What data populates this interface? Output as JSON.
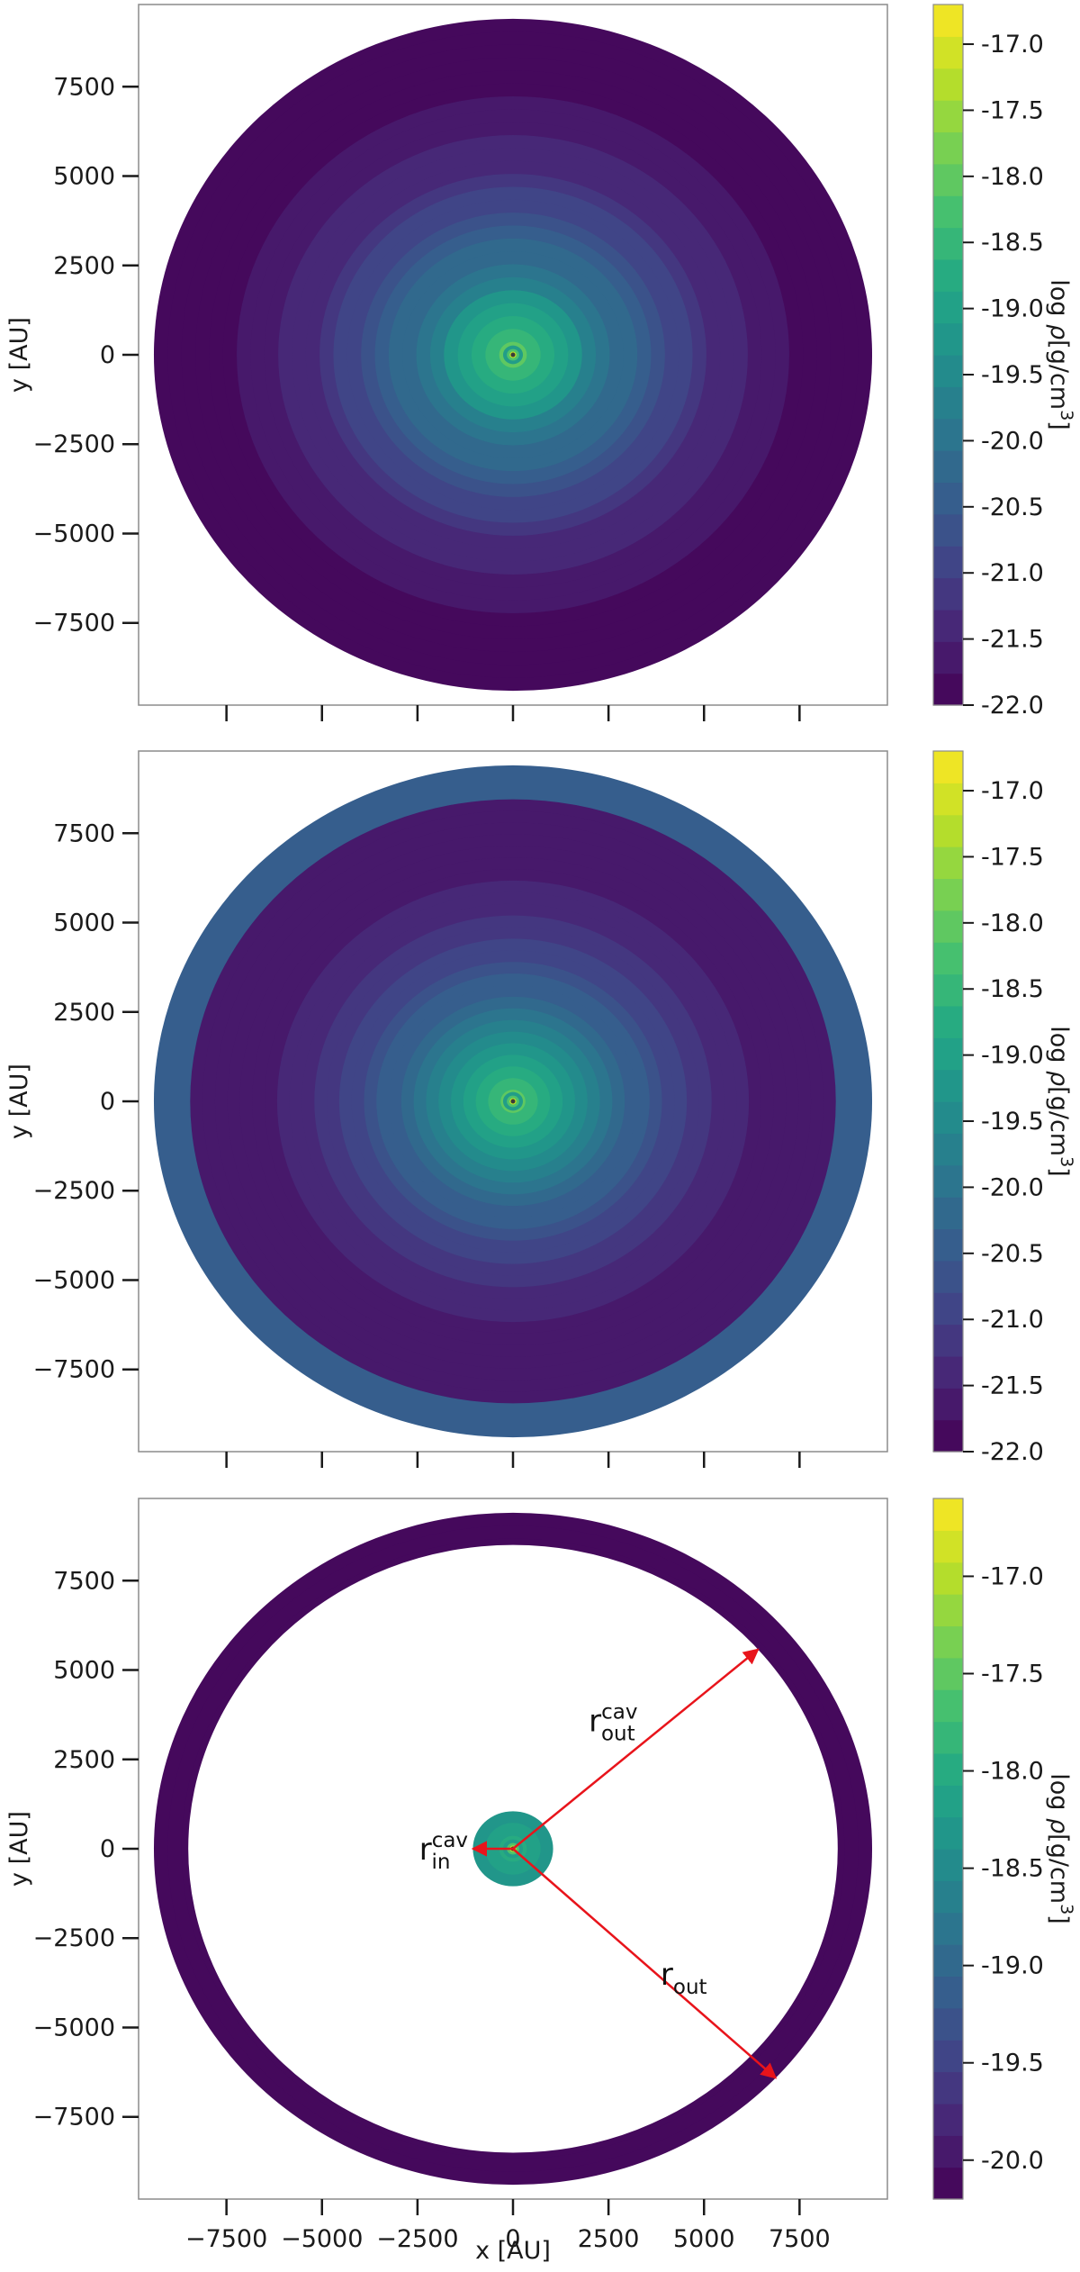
{
  "chart_data": [
    {
      "type": "heatmap",
      "panel": "top",
      "model": "envelope",
      "xlabel": "",
      "ylabel": "y [AU]",
      "xlim": [
        -9800,
        9800
      ],
      "ylim": [
        -9800,
        9800
      ],
      "x_ticks": [
        -7500,
        -5000,
        -2500,
        0,
        2500,
        5000,
        7500
      ],
      "x_tick_labels_shown": false,
      "y_ticks": [
        7500,
        5000,
        2500,
        0,
        -2500,
        -5000,
        -7500
      ],
      "y_tick_labels": [
        "7500",
        "5000",
        "2500",
        "0",
        "−2500",
        "−5000",
        "−7500"
      ],
      "colorbar": {
        "label_prefix": "log ",
        "label_rho": "ρ",
        "label_units": "[g/cm",
        "label_exp": "3",
        "label_close": "]",
        "min": -22.0,
        "max": -16.7,
        "ticks": [
          -17.0,
          -17.5,
          -18.0,
          -18.5,
          -19.0,
          -19.5,
          -20.0,
          -20.5,
          -21.0,
          -21.5,
          -22.0
        ],
        "tick_labels": [
          "-17.0",
          "-17.5",
          "-18.0",
          "-18.5",
          "-19.0",
          "-19.5",
          "-20.0",
          "-20.5",
          "-21.0",
          "-21.5",
          "-22.0"
        ],
        "levels": 22,
        "colormap": "viridis"
      },
      "density_profile": {
        "r_out_au": 9400,
        "r_inner_au": 60,
        "log_rho_center": -17.8,
        "log_rho_edge": -21.9,
        "power_index": -1.5
      },
      "ring": null,
      "cavity": null
    },
    {
      "type": "heatmap",
      "panel": "middle",
      "model": "envelope with outer shell",
      "xlabel": "",
      "ylabel": "y [AU]",
      "xlim": [
        -9800,
        9800
      ],
      "ylim": [
        -9800,
        9800
      ],
      "x_ticks": [
        -7500,
        -5000,
        -2500,
        0,
        2500,
        5000,
        7500
      ],
      "x_tick_labels_shown": false,
      "y_ticks": [
        7500,
        5000,
        2500,
        0,
        -2500,
        -5000,
        -7500
      ],
      "y_tick_labels": [
        "7500",
        "5000",
        "2500",
        "0",
        "−2500",
        "−5000",
        "−7500"
      ],
      "colorbar": {
        "label_prefix": "log ",
        "label_rho": "ρ",
        "label_units": "[g/cm",
        "label_exp": "3",
        "label_close": "]",
        "min": -22.0,
        "max": -16.7,
        "ticks": [
          -17.0,
          -17.5,
          -18.0,
          -18.5,
          -19.0,
          -19.5,
          -20.0,
          -20.5,
          -21.0,
          -21.5,
          -22.0
        ],
        "tick_labels": [
          "-17.0",
          "-17.5",
          "-18.0",
          "-18.5",
          "-19.0",
          "-19.5",
          "-20.0",
          "-20.5",
          "-21.0",
          "-21.5",
          "-22.0"
        ],
        "levels": 22,
        "colormap": "viridis"
      },
      "density_profile": {
        "r_out_au": 8450,
        "r_inner_au": 60,
        "log_rho_center": -17.8,
        "log_rho_edge": -21.7,
        "power_index": -1.5
      },
      "ring": {
        "r_in_au": 8450,
        "r_out_au": 9400,
        "log_rho": -20.35
      },
      "cavity": null
    },
    {
      "type": "heatmap",
      "panel": "bottom",
      "model": "envelope with cavity",
      "xlabel": "x [AU]",
      "ylabel": "y [AU]",
      "xlim": [
        -9800,
        9800
      ],
      "ylim": [
        -9800,
        9800
      ],
      "x_ticks": [
        -7500,
        -5000,
        -2500,
        0,
        2500,
        5000,
        7500
      ],
      "x_tick_labels_shown": true,
      "x_tick_labels": [
        "−7500",
        "−5000",
        "−2500",
        "0",
        "2500",
        "5000",
        "7500"
      ],
      "y_ticks": [
        7500,
        5000,
        2500,
        0,
        -2500,
        -5000,
        -7500
      ],
      "y_tick_labels": [
        "7500",
        "5000",
        "2500",
        "0",
        "−2500",
        "−5000",
        "−7500"
      ],
      "colorbar": {
        "label_prefix": "log ",
        "label_rho": "ρ",
        "label_units": "[g/cm",
        "label_exp": "3",
        "label_close": "]",
        "min": -20.2,
        "max": -16.6,
        "ticks": [
          -17.0,
          -17.5,
          -18.0,
          -18.5,
          -19.0,
          -19.5,
          -20.0
        ],
        "tick_labels": [
          "-17.0",
          "-17.5",
          "-18.0",
          "-18.5",
          "-19.0",
          "-19.5",
          "-20.0"
        ],
        "levels": 22,
        "colormap": "viridis"
      },
      "density_profile": {
        "r_out_au": 9400,
        "r_inner_au": 60,
        "log_rho_center": -17.8,
        "log_rho_edge": -20.1,
        "power_index": -1.5
      },
      "ring": null,
      "cavity": {
        "r_in_au": 1050,
        "r_out_au": 8500
      },
      "annotations": [
        {
          "id": "r-out-cav",
          "base": "r",
          "sub": "out",
          "sup": "cav",
          "angle_deg": 41,
          "radius_au": 8500
        },
        {
          "id": "r-in-cav",
          "base": "r",
          "sub": "in",
          "sup": "cav",
          "angle_deg": 180,
          "radius_au": 1050
        },
        {
          "id": "r-out",
          "base": "r",
          "sub": "out",
          "sup": "",
          "angle_deg": -43,
          "radius_au": 9400
        }
      ],
      "arrow_color": "#e8141b"
    }
  ],
  "colors": {
    "annotation_arrow": "#e8141b",
    "frame": "#8c8c8c",
    "background": "#ffffff"
  }
}
